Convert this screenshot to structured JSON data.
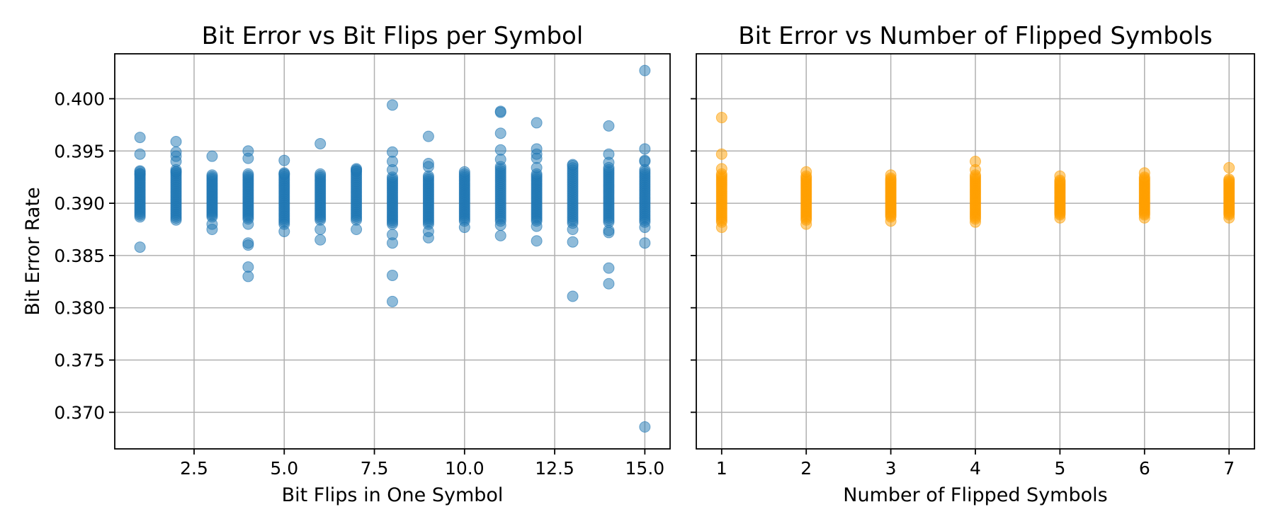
{
  "chart_data": [
    {
      "type": "scatter",
      "title": "Bit Error vs Bit Flips per Symbol",
      "xlabel": "Bit Flips in One Symbol",
      "ylabel": "Bit Error Rate",
      "xlim": [
        0.3,
        15.7
      ],
      "ylim": [
        0.3665,
        0.4043
      ],
      "xticks": [
        2.5,
        5.0,
        7.5,
        10.0,
        12.5,
        15.0
      ],
      "xtick_labels": [
        "2.5",
        "5.0",
        "7.5",
        "10.0",
        "12.5",
        "15.0"
      ],
      "yticks": [
        0.37,
        0.375,
        0.38,
        0.385,
        0.39,
        0.395,
        0.4
      ],
      "ytick_labels": [
        "0.370",
        "0.375",
        "0.380",
        "0.385",
        "0.390",
        "0.395",
        "0.400"
      ],
      "grid": true,
      "color": "#1f77b4",
      "series": [
        {
          "points": [
            [
              1,
              0.3963
            ],
            [
              1,
              0.3947
            ],
            [
              1,
              0.3931
            ],
            [
              1,
              0.3928
            ],
            [
              1,
              0.3858
            ],
            [
              2,
              0.3959
            ],
            [
              2,
              0.3949
            ],
            [
              2,
              0.3945
            ],
            [
              2,
              0.394
            ],
            [
              2,
              0.393
            ],
            [
              3,
              0.3945
            ],
            [
              3,
              0.388
            ],
            [
              3,
              0.3875
            ],
            [
              4,
              0.395
            ],
            [
              4,
              0.3943
            ],
            [
              4,
              0.388
            ],
            [
              4,
              0.3862
            ],
            [
              4,
              0.386
            ],
            [
              4,
              0.3839
            ],
            [
              4,
              0.383
            ],
            [
              5,
              0.3941
            ],
            [
              5,
              0.3928
            ],
            [
              5,
              0.388
            ],
            [
              5,
              0.3873
            ],
            [
              6,
              0.3957
            ],
            [
              6,
              0.3875
            ],
            [
              6,
              0.3865
            ],
            [
              7,
              0.3933
            ],
            [
              7,
              0.3931
            ],
            [
              7,
              0.3875
            ],
            [
              8,
              0.3994
            ],
            [
              8,
              0.3949
            ],
            [
              8,
              0.394
            ],
            [
              8,
              0.3932
            ],
            [
              8,
              0.387
            ],
            [
              8,
              0.3862
            ],
            [
              8,
              0.3831
            ],
            [
              8,
              0.3806
            ],
            [
              9,
              0.3964
            ],
            [
              9,
              0.3938
            ],
            [
              9,
              0.3935
            ],
            [
              9,
              0.388
            ],
            [
              9,
              0.3873
            ],
            [
              9,
              0.3867
            ],
            [
              10,
              0.393
            ],
            [
              10,
              0.3877
            ],
            [
              11,
              0.3988
            ],
            [
              11,
              0.3987
            ],
            [
              11,
              0.3967
            ],
            [
              11,
              0.3951
            ],
            [
              11,
              0.3942
            ],
            [
              11,
              0.3879
            ],
            [
              11,
              0.3869
            ],
            [
              12,
              0.3977
            ],
            [
              12,
              0.3952
            ],
            [
              12,
              0.3947
            ],
            [
              12,
              0.3943
            ],
            [
              12,
              0.3934
            ],
            [
              12,
              0.3878
            ],
            [
              12,
              0.3864
            ],
            [
              13,
              0.3937
            ],
            [
              13,
              0.3875
            ],
            [
              13,
              0.3863
            ],
            [
              13,
              0.3811
            ],
            [
              14,
              0.3974
            ],
            [
              14,
              0.3947
            ],
            [
              14,
              0.3939
            ],
            [
              14,
              0.3934
            ],
            [
              14,
              0.3874
            ],
            [
              14,
              0.3872
            ],
            [
              14,
              0.3838
            ],
            [
              14,
              0.3823
            ],
            [
              15,
              0.4027
            ],
            [
              15,
              0.3952
            ],
            [
              15,
              0.3941
            ],
            [
              15,
              0.394
            ],
            [
              15,
              0.3932
            ],
            [
              15,
              0.3877
            ],
            [
              15,
              0.3862
            ],
            [
              15,
              0.3686
            ]
          ],
          "dense_bands": [
            {
              "x": 1,
              "y_min": 0.3887,
              "y_max": 0.393
            },
            {
              "x": 2,
              "y_min": 0.3884,
              "y_max": 0.3932
            },
            {
              "x": 3,
              "y_min": 0.3887,
              "y_max": 0.3927
            },
            {
              "x": 4,
              "y_min": 0.3885,
              "y_max": 0.3928
            },
            {
              "x": 5,
              "y_min": 0.3882,
              "y_max": 0.3929
            },
            {
              "x": 6,
              "y_min": 0.3884,
              "y_max": 0.3928
            },
            {
              "x": 7,
              "y_min": 0.3884,
              "y_max": 0.3932
            },
            {
              "x": 8,
              "y_min": 0.388,
              "y_max": 0.3925
            },
            {
              "x": 9,
              "y_min": 0.3882,
              "y_max": 0.3926
            },
            {
              "x": 10,
              "y_min": 0.3883,
              "y_max": 0.3928
            },
            {
              "x": 11,
              "y_min": 0.3883,
              "y_max": 0.3935
            },
            {
              "x": 12,
              "y_min": 0.3883,
              "y_max": 0.3928
            },
            {
              "x": 13,
              "y_min": 0.3881,
              "y_max": 0.3936
            },
            {
              "x": 14,
              "y_min": 0.3882,
              "y_max": 0.3932
            },
            {
              "x": 15,
              "y_min": 0.3882,
              "y_max": 0.393
            }
          ]
        }
      ]
    },
    {
      "type": "scatter",
      "title": "Bit Error vs Number of Flipped Symbols",
      "xlabel": "Number of Flipped Symbols",
      "ylabel": "",
      "xlim": [
        0.7,
        7.3
      ],
      "ylim": [
        0.3665,
        0.4043
      ],
      "xticks": [
        1,
        2,
        3,
        4,
        5,
        6,
        7
      ],
      "xtick_labels": [
        "1",
        "2",
        "3",
        "4",
        "5",
        "6",
        "7"
      ],
      "yticks": [
        0.37,
        0.375,
        0.38,
        0.385,
        0.39,
        0.395,
        0.4
      ],
      "ytick_labels": [],
      "grid": true,
      "color": "#ff9f00",
      "series": [
        {
          "points": [
            [
              1,
              0.3982
            ],
            [
              1,
              0.3947
            ],
            [
              1,
              0.3933
            ],
            [
              1,
              0.3877
            ],
            [
              2,
              0.393
            ],
            [
              2,
              0.388
            ],
            [
              3,
              0.3927
            ],
            [
              3,
              0.3883
            ],
            [
              4,
              0.394
            ],
            [
              4,
              0.3932
            ],
            [
              4,
              0.3882
            ],
            [
              5,
              0.3926
            ],
            [
              5,
              0.3886
            ],
            [
              6,
              0.3929
            ],
            [
              6,
              0.3886
            ],
            [
              7,
              0.3934
            ],
            [
              7,
              0.3886
            ]
          ],
          "dense_bands": [
            {
              "x": 1,
              "y_min": 0.3882,
              "y_max": 0.3928
            },
            {
              "x": 2,
              "y_min": 0.3884,
              "y_max": 0.3926
            },
            {
              "x": 3,
              "y_min": 0.3887,
              "y_max": 0.3924
            },
            {
              "x": 4,
              "y_min": 0.3885,
              "y_max": 0.3927
            },
            {
              "x": 5,
              "y_min": 0.3889,
              "y_max": 0.3922
            },
            {
              "x": 6,
              "y_min": 0.3889,
              "y_max": 0.3925
            },
            {
              "x": 7,
              "y_min": 0.3889,
              "y_max": 0.3923
            }
          ]
        }
      ]
    }
  ]
}
